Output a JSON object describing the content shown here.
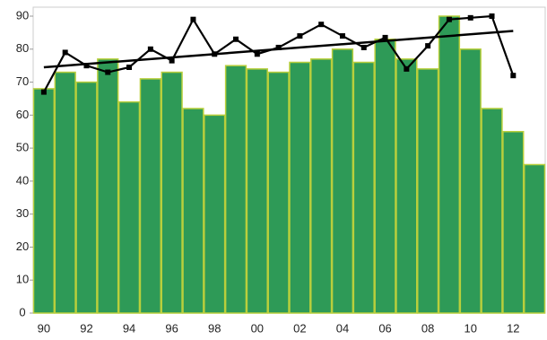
{
  "chart_data": {
    "type": "bar_line",
    "categories": [
      "90",
      null,
      "92",
      null,
      "94",
      null,
      "96",
      null,
      "98",
      null,
      "00",
      null,
      "02",
      null,
      "04",
      null,
      "06",
      null,
      "08",
      null,
      "10",
      null,
      "12",
      null
    ],
    "series": [
      {
        "type": "bar",
        "color": "#2e9a57",
        "edge_color": "#b9cf3c",
        "values": [
          68,
          73,
          70,
          77,
          64,
          71,
          73,
          62,
          60,
          75,
          74,
          73,
          76,
          77,
          80,
          76,
          83,
          77,
          74,
          90,
          80,
          62,
          55,
          45
        ]
      },
      {
        "type": "line",
        "color": "#000000",
        "values": [
          67,
          79,
          75,
          73,
          74.5,
          80,
          76.5,
          89,
          78.5,
          83,
          78.5,
          80.5,
          84,
          87.5,
          84,
          80.5,
          83.5,
          74,
          81,
          89,
          89.5,
          90,
          72,
          null
        ]
      }
    ],
    "trendline": {
      "color": "#000000",
      "category_index": [
        0,
        22
      ],
      "values": [
        74.5,
        85.5
      ]
    },
    "ylim": [
      0,
      90
    ],
    "yticks": [
      0,
      10,
      20,
      30,
      40,
      50,
      60,
      70,
      80,
      90
    ]
  }
}
